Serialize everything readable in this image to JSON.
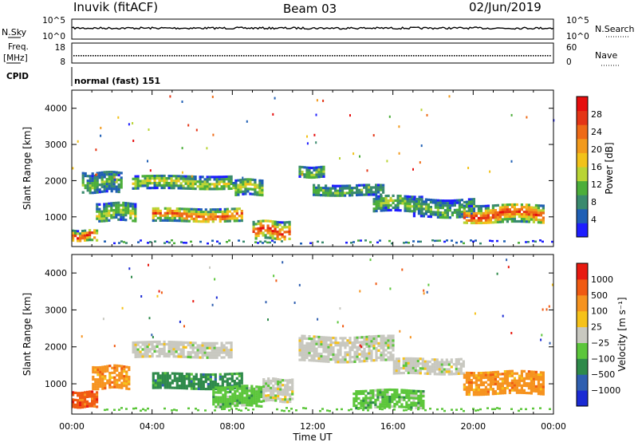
{
  "header": {
    "station": "Inuvik (fitACF)",
    "beam": "Beam 03",
    "date": "02/Jun/2019"
  },
  "panel_nsky": {
    "left_label": "N.Sky",
    "left_ticks": [
      "10^5",
      "10^0"
    ],
    "right_ticks": [
      "10^5",
      "10^0"
    ],
    "right_label": "N.Search"
  },
  "panel_freq": {
    "left_label_1": "Freq.",
    "left_label_2": "[MHz]",
    "left_ticks": [
      "18",
      "8"
    ],
    "right_ticks": [
      "60",
      "0"
    ],
    "right_label": "Nave"
  },
  "cpid": {
    "label": "CPID",
    "value": "normal (fast) 151"
  },
  "chart_data": [
    {
      "type": "heatmap",
      "name": "Power",
      "xlabel": "Time UT",
      "ylabel": "Slant Range [km]",
      "xlim": [
        0,
        24
      ],
      "ylim": [
        180,
        4500
      ],
      "y_ticks": [
        1000,
        2000,
        3000,
        4000
      ],
      "colorbar_label": "Power [dB]",
      "colorbar_ticks": [
        "4",
        "8",
        "12",
        "16",
        "20",
        "24",
        "28"
      ],
      "colorbar_colors": [
        "#1e1eff",
        "#1f5fb5",
        "#3a8a6e",
        "#4cae3a",
        "#b9d435",
        "#f2c21a",
        "#f29a1c",
        "#ee6a16",
        "#e43515",
        "#e60d0d"
      ],
      "echo_regions": [
        {
          "t": [
            0.0,
            1.2
          ],
          "range": [
            350,
            650
          ],
          "level": 0.95
        },
        {
          "t": [
            0.5,
            2.5
          ],
          "range": [
            1700,
            2250
          ],
          "level": 0.35
        },
        {
          "t": [
            1.2,
            3.2
          ],
          "range": [
            900,
            1400
          ],
          "level": 0.45
        },
        {
          "t": [
            3.0,
            8.0
          ],
          "range": [
            1800,
            2150
          ],
          "level": 0.5
        },
        {
          "t": [
            4.0,
            8.5
          ],
          "range": [
            900,
            1250
          ],
          "level": 0.85
        },
        {
          "t": [
            8.0,
            9.5
          ],
          "range": [
            1650,
            2050
          ],
          "level": 0.5
        },
        {
          "t": [
            9.0,
            10.8
          ],
          "range": [
            400,
            900
          ],
          "level": 0.95
        },
        {
          "t": [
            11.3,
            12.6
          ],
          "range": [
            2100,
            2400
          ],
          "level": 0.45
        },
        {
          "t": [
            12.0,
            15.5
          ],
          "range": [
            1600,
            1900
          ],
          "level": 0.35
        },
        {
          "t": [
            15.0,
            17.5
          ],
          "range": [
            1200,
            1600
          ],
          "level": 0.45
        },
        {
          "t": [
            17.0,
            20.0
          ],
          "range": [
            1000,
            1500
          ],
          "level": 0.35
        },
        {
          "t": [
            19.5,
            23.5
          ],
          "range": [
            850,
            1350
          ],
          "level": 0.9
        }
      ]
    },
    {
      "type": "heatmap",
      "name": "Velocity",
      "xlabel": "Time UT",
      "ylabel": "Slant Range [km]",
      "xlim": [
        0,
        24
      ],
      "ylim": [
        180,
        4500
      ],
      "x_ticks": [
        "00:00",
        "04:00",
        "08:00",
        "12:00",
        "16:00",
        "20:00",
        "00:00"
      ],
      "y_ticks": [
        1000,
        2000,
        3000,
        4000
      ],
      "colorbar_label": "Velocity [m s⁻¹]",
      "colorbar_ticks": [
        "1000",
        "500",
        "100",
        "25",
        "−25",
        "−100",
        "−500",
        "−1000"
      ],
      "colorbar_colors": [
        "#1a2ad4",
        "#2f5fb0",
        "#2e8a4a",
        "#5cc63b",
        "#c8c8c0",
        "#f6c21a",
        "#f6931f",
        "#f05a12",
        "#e81a10"
      ],
      "echo_regions": [
        {
          "t": [
            0.0,
            1.2
          ],
          "range": [
            350,
            800
          ],
          "bin": 7
        },
        {
          "t": [
            1.0,
            2.8
          ],
          "range": [
            900,
            1500
          ],
          "bin": 6
        },
        {
          "t": [
            3.0,
            8.0
          ],
          "range": [
            1700,
            2150
          ],
          "bin": 4
        },
        {
          "t": [
            4.0,
            8.5
          ],
          "range": [
            900,
            1300
          ],
          "bin": 2
        },
        {
          "t": [
            7.0,
            9.5
          ],
          "range": [
            400,
            950
          ],
          "bin": 3
        },
        {
          "t": [
            9.5,
            11.0
          ],
          "range": [
            550,
            1150
          ],
          "bin": 4
        },
        {
          "t": [
            11.3,
            16.0
          ],
          "range": [
            1600,
            2300
          ],
          "bin": 4
        },
        {
          "t": [
            14.0,
            17.5
          ],
          "range": [
            350,
            850
          ],
          "bin": 3
        },
        {
          "t": [
            16.0,
            19.5
          ],
          "range": [
            1300,
            1700
          ],
          "bin": 4
        },
        {
          "t": [
            19.5,
            23.5
          ],
          "range": [
            750,
            1350
          ],
          "bin": 6
        }
      ]
    }
  ]
}
